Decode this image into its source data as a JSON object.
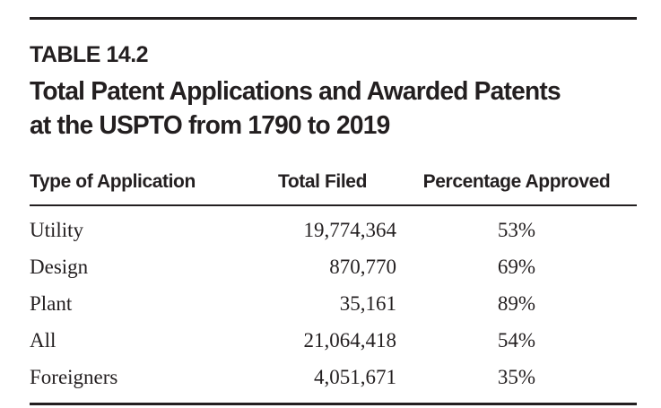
{
  "table": {
    "label": "TABLE 14.2",
    "title_line1": "Total Patent Applications and Awarded Patents",
    "title_line2": "at the USPTO from 1790 to 2019",
    "columns": {
      "type": "Type of Application",
      "filed": "Total Filed",
      "approved": "Percentage Approved"
    },
    "rows": [
      {
        "type": "Utility",
        "total_filed": "19,774,364",
        "pct_approved": "53%"
      },
      {
        "type": "Design",
        "total_filed": "870,770",
        "pct_approved": "69%"
      },
      {
        "type": "Plant",
        "total_filed": "35,161",
        "pct_approved": "89%"
      },
      {
        "type": "All",
        "total_filed": "21,064,418",
        "pct_approved": "54%"
      },
      {
        "type": "Foreigners",
        "total_filed": "4,051,671",
        "pct_approved": "35%"
      }
    ],
    "text_color": "#231f20"
  }
}
